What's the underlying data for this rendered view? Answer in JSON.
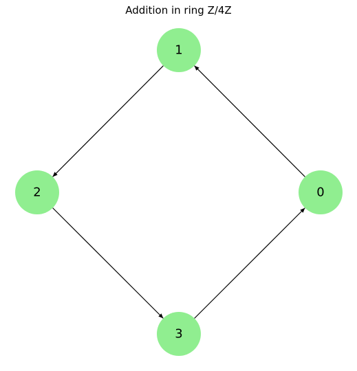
{
  "title": "Addition in ring Z/4Z",
  "colors": {
    "node_fill": "#90ee90",
    "edge": "#000000",
    "background": "#ffffff"
  },
  "nodes": [
    {
      "id": "0",
      "label": "0"
    },
    {
      "id": "1",
      "label": "1"
    },
    {
      "id": "2",
      "label": "2"
    },
    {
      "id": "3",
      "label": "3"
    }
  ],
  "edges": [
    {
      "from": "0",
      "to": "1"
    },
    {
      "from": "1",
      "to": "2"
    },
    {
      "from": "2",
      "to": "3"
    },
    {
      "from": "3",
      "to": "0"
    }
  ]
}
